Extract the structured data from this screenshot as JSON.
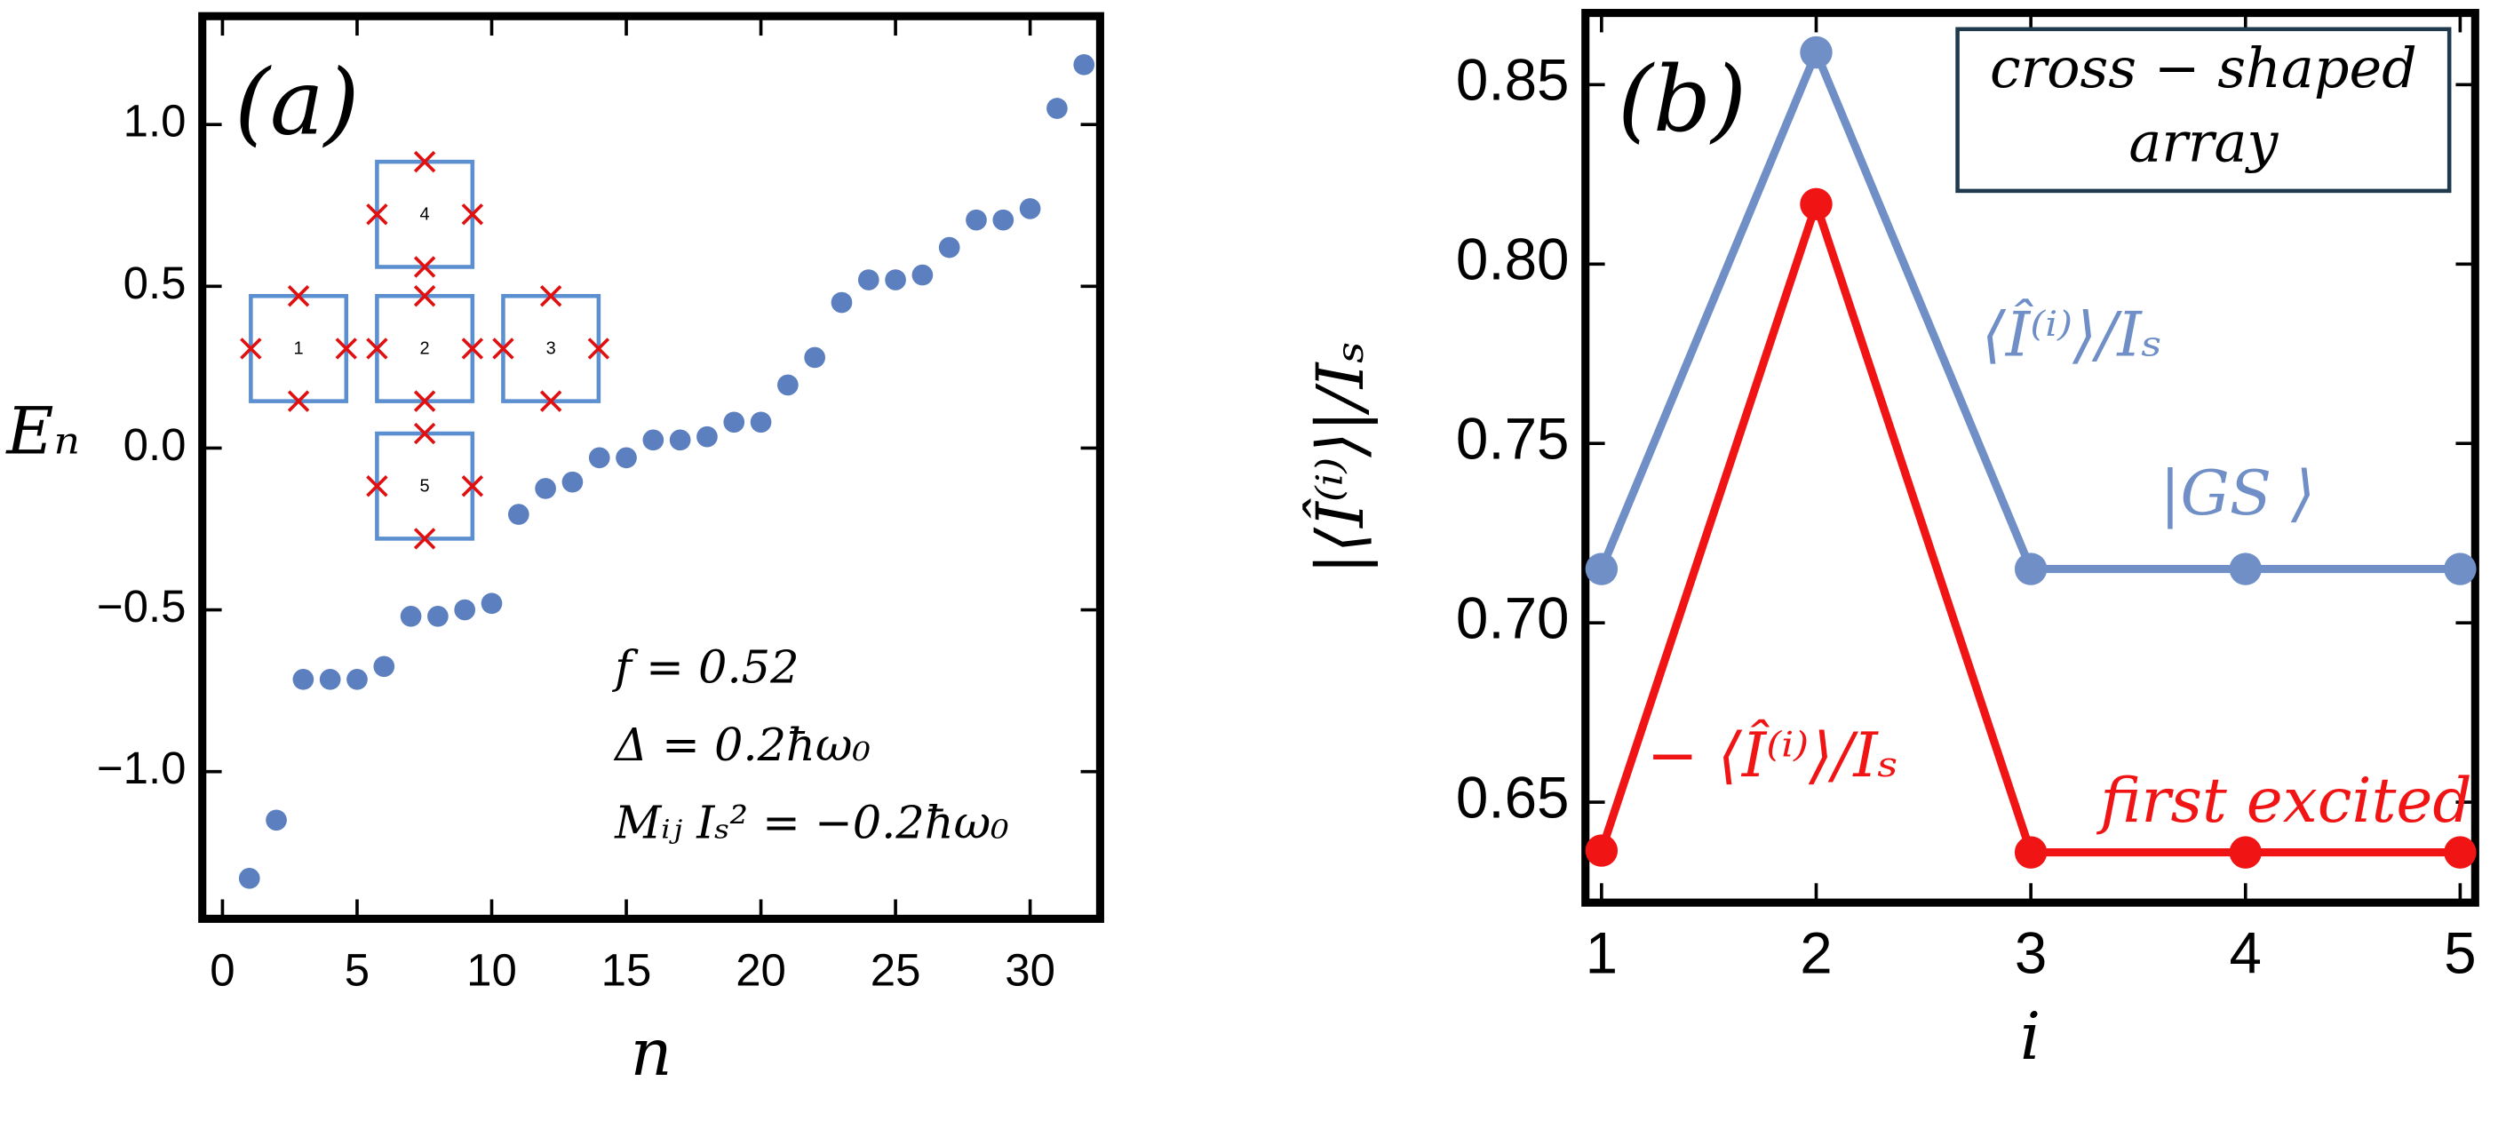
{
  "chart_data": [
    {
      "type": "scatter",
      "panel_label": "(a)",
      "xlabel": "n",
      "ylabel": "Eₙ",
      "x": [
        1,
        2,
        3,
        4,
        5,
        6,
        7,
        8,
        9,
        10,
        11,
        12,
        13,
        14,
        15,
        16,
        17,
        18,
        19,
        20,
        21,
        22,
        23,
        24,
        25,
        26,
        27,
        28,
        29,
        30,
        31,
        32
      ],
      "series": [
        {
          "color": "#5b7fbf",
          "values": [
            -1.33,
            -1.15,
            -0.715,
            -0.715,
            -0.715,
            -0.675,
            -0.52,
            -0.52,
            -0.5,
            -0.48,
            -0.205,
            -0.125,
            -0.105,
            -0.03,
            -0.03,
            0.025,
            0.025,
            0.035,
            0.08,
            0.08,
            0.195,
            0.28,
            0.45,
            0.52,
            0.52,
            0.535,
            0.62,
            0.705,
            0.705,
            0.74,
            1.05,
            1.185
          ]
        }
      ],
      "xlim": [
        -0.75,
        32.6
      ],
      "ylim": [
        -1.455,
        1.335
      ],
      "xticks": [
        0,
        5,
        10,
        15,
        20,
        25,
        30
      ],
      "yticks": [
        {
          "value": -1,
          "label": "−1.0"
        },
        {
          "value": -0.5,
          "label": "−0.5"
        },
        {
          "value": 0,
          "label": "0.0"
        },
        {
          "value": 0.5,
          "label": "0.5"
        },
        {
          "value": 1,
          "label": "1.0"
        }
      ],
      "annotations": [
        "f = 0.52",
        "Δ = 0.2ħω₀",
        "Mᵢⱼ Iₛ² = −0.2ħω₀"
      ],
      "inset_labels": [
        "1",
        "2",
        "3",
        "4",
        "5"
      ]
    },
    {
      "type": "line",
      "panel_label": "(b)",
      "xlabel": "i",
      "ylabel": "|⟨Î⁽ⁱ⁾⟩|/Iₛ",
      "x": [
        1,
        2,
        3,
        4,
        5
      ],
      "series": [
        {
          "name": "⟨Î⁽ⁱ⁾⟩/Iₛ",
          "state": "|GS ⟩",
          "color": "#6f8fc6",
          "values": [
            0.715,
            0.859,
            0.715,
            0.715,
            0.715
          ]
        },
        {
          "name": "− ⟨Î⁽ⁱ⁾⟩/Iₛ",
          "state": "first excited",
          "color": "#f01414",
          "values": [
            0.6365,
            0.8167,
            0.636,
            0.636,
            0.636
          ]
        }
      ],
      "xlim": [
        0.925,
        5.07
      ],
      "ylim": [
        0.622,
        0.87
      ],
      "xticks": [
        1,
        2,
        3,
        4,
        5
      ],
      "yticks": [
        0.65,
        {
          "value": 0.7,
          "label": "0.70"
        },
        0.75,
        {
          "value": 0.8,
          "label": "0.80"
        },
        0.85
      ],
      "box_text": [
        "cross − shaped",
        "array"
      ]
    }
  ]
}
